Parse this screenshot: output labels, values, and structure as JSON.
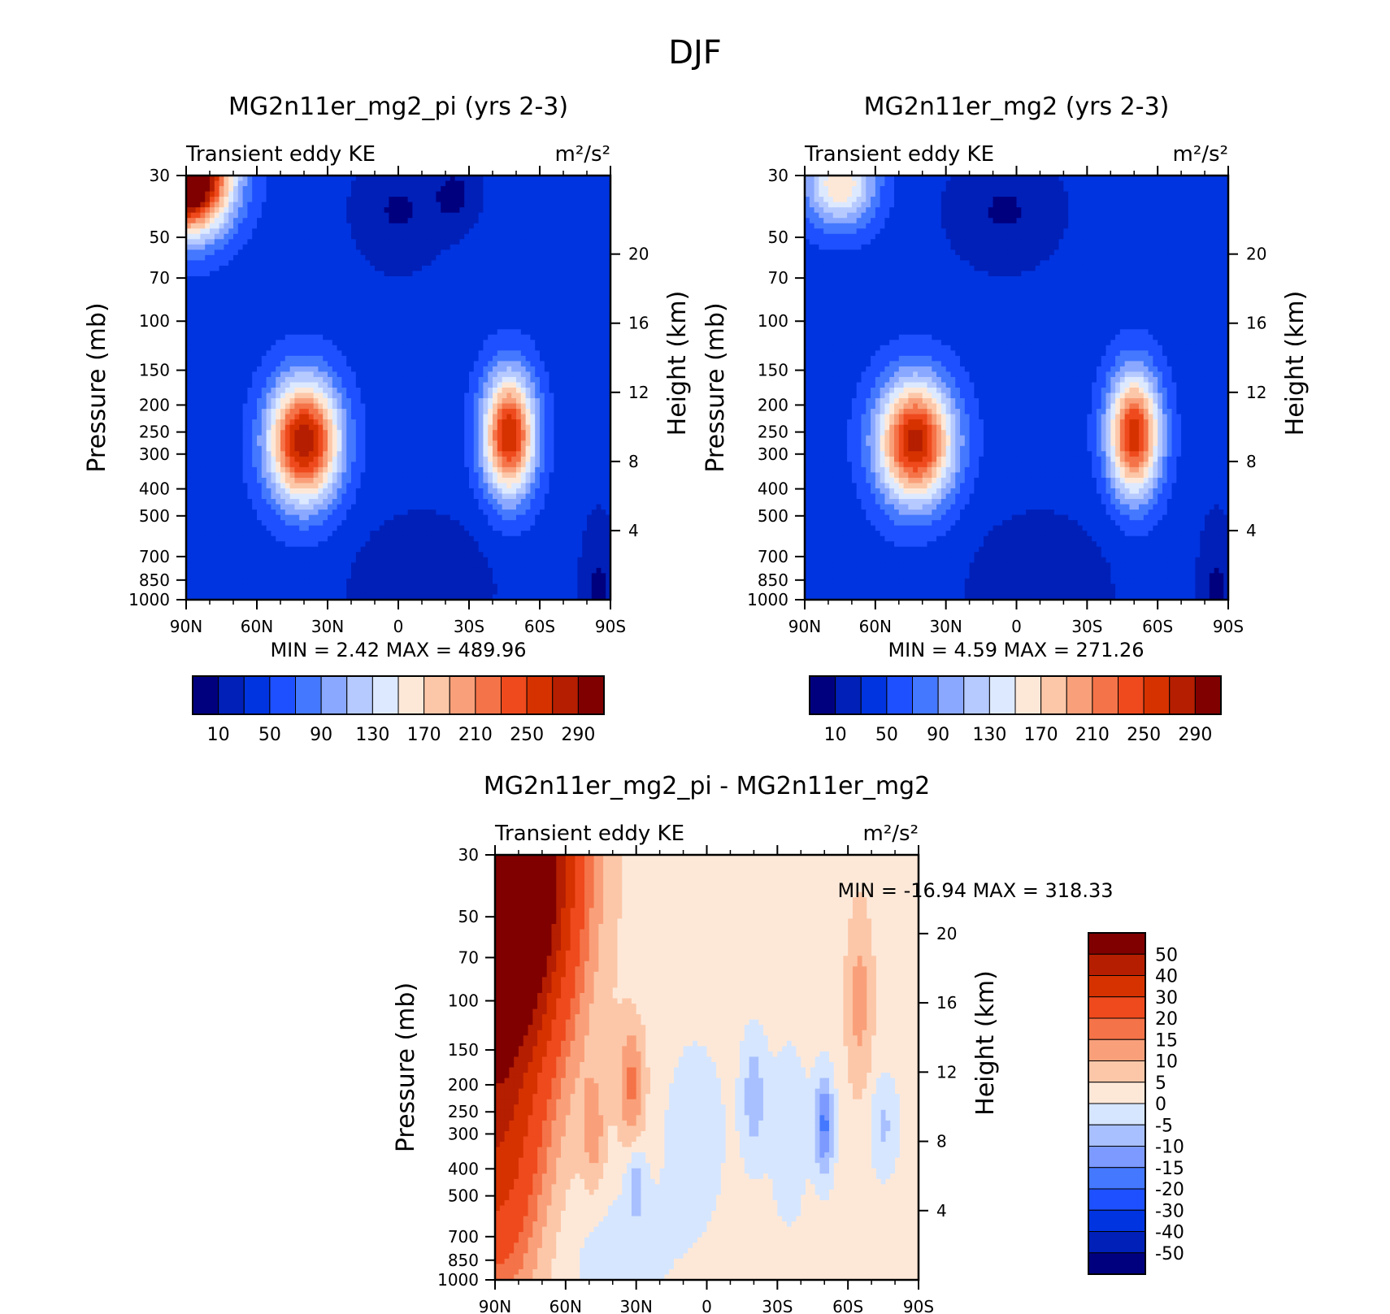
{
  "figure": {
    "title": "DJF"
  },
  "colors": {
    "ke_levels": [
      "#00007f",
      "#0020b8",
      "#0034e0",
      "#1e50ff",
      "#4478ff",
      "#8aa8ff",
      "#b6caff",
      "#dde9ff",
      "#fde8d8",
      "#fcc7a8",
      "#f9a07a",
      "#f57348",
      "#ee4a1d",
      "#d63200",
      "#b51e00",
      "#800000"
    ],
    "diff_levels": [
      "#00007f",
      "#0020b8",
      "#0034e0",
      "#1e50ff",
      "#4478ff",
      "#7c9aff",
      "#a8c0ff",
      "#d6e6ff",
      "#fde8d8",
      "#fcc7a8",
      "#f9a07a",
      "#f57348",
      "#ee4a1d",
      "#d63200",
      "#b51e00",
      "#800000"
    ]
  },
  "chart_data": [
    {
      "type": "heatmap",
      "title": "MG2n11er_mg2_pi (yrs 2-3)",
      "left_string": "Transient eddy KE",
      "right_string": "m²/s²",
      "xlabel": "",
      "ylabel": "Pressure (mb)",
      "ylabel_right": "Height (km)",
      "x_ticks": [
        "90N",
        "60N",
        "30N",
        "0",
        "30S",
        "60S",
        "90S"
      ],
      "y_ticks": [
        "30",
        "50",
        "70",
        "100",
        "150",
        "200",
        "250",
        "300",
        "400",
        "500",
        "700",
        "850",
        "1000"
      ],
      "y_right_ticks": [
        "4",
        "8",
        "12",
        "16",
        "20"
      ],
      "xlim": [
        90,
        -90
      ],
      "ylim": [
        1000,
        30
      ],
      "min_label": "MIN =",
      "min_value": "2.42",
      "max_label": "MAX =",
      "max_value": "489.96",
      "colorbar_labels": [
        "10",
        "50",
        "90",
        "130",
        "170",
        "210",
        "250",
        "290"
      ],
      "colorbar_levels": [
        10,
        30,
        50,
        70,
        90,
        110,
        130,
        150,
        170,
        190,
        210,
        230,
        250,
        270,
        290
      ],
      "field": {
        "background": 40,
        "features": [
          {
            "lat": 90,
            "p": 30,
            "amp": 360,
            "wlat": 18,
            "wlp": 0.45
          },
          {
            "lat": 40,
            "p": 270,
            "amp": 250,
            "wlat": 15,
            "wlp": 0.5
          },
          {
            "lat": -47,
            "p": 255,
            "amp": 230,
            "wlat": 11,
            "wlp": 0.5
          },
          {
            "lat": 0,
            "p": 40,
            "amp": -32,
            "wlat": 20,
            "wlp": 0.5
          },
          {
            "lat": -25,
            "p": 35,
            "amp": -30,
            "wlat": 10,
            "wlp": 0.3
          },
          {
            "lat": -10,
            "p": 900,
            "amp": -30,
            "wlat": 30,
            "wlp": 0.6
          },
          {
            "lat": -85,
            "p": 1000,
            "amp": -35,
            "wlat": 8,
            "wlp": 0.7
          }
        ]
      }
    },
    {
      "type": "heatmap",
      "title": "MG2n11er_mg2 (yrs 2-3)",
      "left_string": "Transient eddy KE",
      "right_string": "m²/s²",
      "xlabel": "",
      "ylabel": "Pressure (mb)",
      "ylabel_right": "Height (km)",
      "x_ticks": [
        "90N",
        "60N",
        "30N",
        "0",
        "30S",
        "60S",
        "90S"
      ],
      "y_ticks": [
        "30",
        "50",
        "70",
        "100",
        "150",
        "200",
        "250",
        "300",
        "400",
        "500",
        "700",
        "850",
        "1000"
      ],
      "y_right_ticks": [
        "4",
        "8",
        "12",
        "16",
        "20"
      ],
      "xlim": [
        90,
        -90
      ],
      "ylim": [
        1000,
        30
      ],
      "min_label": "MIN =",
      "min_value": "4.59",
      "max_label": "MAX =",
      "max_value": "271.26",
      "colorbar_labels": [
        "10",
        "50",
        "90",
        "130",
        "170",
        "210",
        "250",
        "290"
      ],
      "colorbar_levels": [
        10,
        30,
        50,
        70,
        90,
        110,
        130,
        150,
        170,
        190,
        210,
        230,
        250,
        270,
        290
      ],
      "field": {
        "background": 40,
        "features": [
          {
            "lat": 75,
            "p": 32,
            "amp": 130,
            "wlat": 15,
            "wlp": 0.35
          },
          {
            "lat": 43,
            "p": 270,
            "amp": 240,
            "wlat": 16,
            "wlp": 0.5
          },
          {
            "lat": -50,
            "p": 255,
            "amp": 225,
            "wlat": 11,
            "wlp": 0.5
          },
          {
            "lat": 5,
            "p": 40,
            "amp": -32,
            "wlat": 25,
            "wlp": 0.5
          },
          {
            "lat": -10,
            "p": 900,
            "amp": -30,
            "wlat": 30,
            "wlp": 0.6
          },
          {
            "lat": -85,
            "p": 1000,
            "amp": -35,
            "wlat": 8,
            "wlp": 0.7
          }
        ]
      }
    },
    {
      "type": "heatmap",
      "title": "MG2n11er_mg2_pi - MG2n11er_mg2",
      "left_string": "Transient eddy KE",
      "right_string": "m²/s²",
      "xlabel": "",
      "ylabel": "Pressure (mb)",
      "ylabel_right": "Height (km)",
      "x_ticks": [
        "90N",
        "60N",
        "30N",
        "0",
        "30S",
        "60S",
        "90S"
      ],
      "y_ticks": [
        "30",
        "50",
        "70",
        "100",
        "150",
        "200",
        "250",
        "300",
        "400",
        "500",
        "700",
        "850",
        "1000"
      ],
      "y_right_ticks": [
        "4",
        "8",
        "12",
        "16",
        "20"
      ],
      "xlim": [
        90,
        -90
      ],
      "ylim": [
        1000,
        30
      ],
      "min_label": "MIN =",
      "min_value": "-16.94",
      "max_label": "MAX =",
      "max_value": "318.33",
      "colorbar_labels": [
        "50",
        "40",
        "30",
        "20",
        "15",
        "10",
        "5",
        "0",
        "-5",
        "-10",
        "-15",
        "-20",
        "-30",
        "-40",
        "-50"
      ],
      "colorbar_levels": [
        -50,
        -40,
        -30,
        -20,
        -15,
        -10,
        -5,
        0,
        5,
        10,
        15,
        20,
        30,
        40,
        50
      ],
      "field": {
        "background": 2,
        "features": [
          {
            "lat": 90,
            "p": 30,
            "amp": 120,
            "wlat": 28,
            "wlp": 1.6
          },
          {
            "lat": 90,
            "p": 400,
            "amp": 26,
            "wlat": 20,
            "wlp": 1.2
          },
          {
            "lat": 48,
            "p": 300,
            "amp": 10,
            "wlat": 5,
            "wlp": 0.5
          },
          {
            "lat": 32,
            "p": 200,
            "amp": 14,
            "wlat": 6,
            "wlp": 0.5
          },
          {
            "lat": -65,
            "p": 100,
            "amp": 10,
            "wlat": 6,
            "wlp": 0.8
          },
          {
            "lat": -50,
            "p": 280,
            "amp": -18,
            "wlat": 4,
            "wlp": 0.4
          },
          {
            "lat": -20,
            "p": 220,
            "amp": -10,
            "wlat": 5,
            "wlp": 0.5
          },
          {
            "lat": 30,
            "p": 450,
            "amp": -10,
            "wlat": 4,
            "wlp": 0.3
          },
          {
            "lat": -75,
            "p": 280,
            "amp": -8,
            "wlat": 6,
            "wlp": 0.4
          },
          {
            "lat": 5,
            "p": 300,
            "amp": -4,
            "wlat": 15,
            "wlp": 0.9
          },
          {
            "lat": -35,
            "p": 300,
            "amp": -4,
            "wlat": 10,
            "wlp": 0.9
          },
          {
            "lat": 40,
            "p": 800,
            "amp": -4,
            "wlat": 25,
            "wlp": 0.6
          }
        ]
      }
    }
  ]
}
